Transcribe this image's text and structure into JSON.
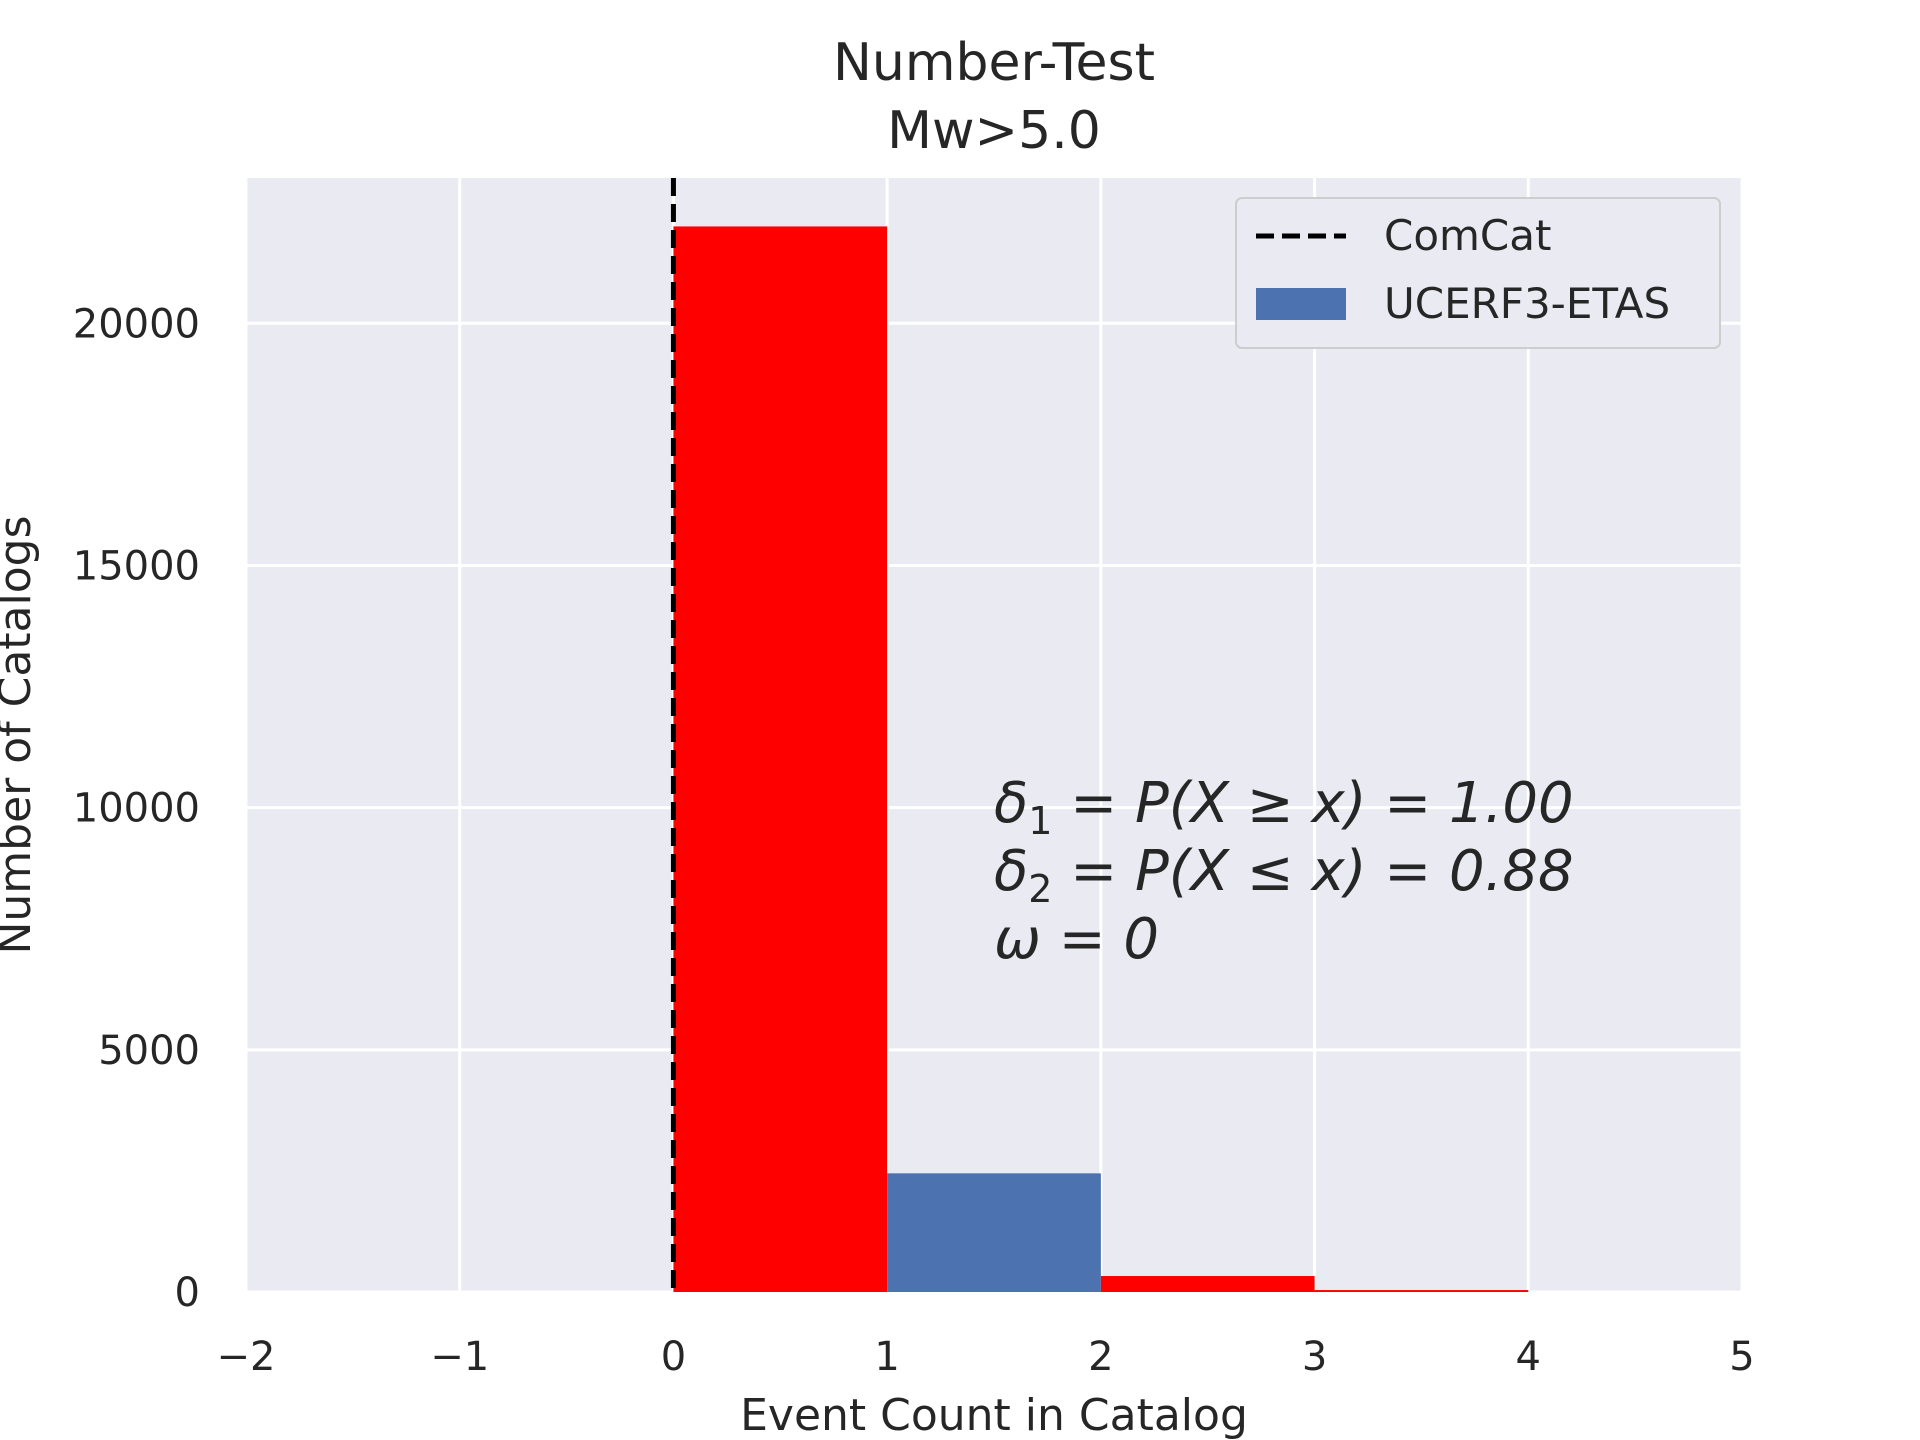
{
  "chart_data": {
    "type": "bar",
    "title": "Number-Test",
    "subtitle": "Mw>5.0",
    "xlabel": "Event Count in Catalog",
    "ylabel": "Number of Catalogs",
    "xlim": [
      -2,
      5
    ],
    "ylim": [
      0,
      23000
    ],
    "xticks": [
      "−2",
      "−1",
      "0",
      "1",
      "2",
      "3",
      "4",
      "5"
    ],
    "xtick_values": [
      -2,
      -1,
      0,
      1,
      2,
      3,
      4,
      5
    ],
    "yticks": [
      "0",
      "5000",
      "10000",
      "15000",
      "20000"
    ],
    "ytick_values": [
      0,
      5000,
      10000,
      15000,
      20000
    ],
    "grid": true,
    "legend_position": "upper right",
    "bins": [
      {
        "x0": 0,
        "x1": 1,
        "value": 22000,
        "color": "#ff0000"
      },
      {
        "x0": 1,
        "x1": 2,
        "value": 2450,
        "color": "#4c72b0"
      },
      {
        "x0": 2,
        "x1": 3,
        "value": 330,
        "color": "#ff0000"
      },
      {
        "x0": 3,
        "x1": 4,
        "value": 40,
        "color": "#ff0000"
      }
    ],
    "series": [
      {
        "name": "ComCat",
        "kind": "vline",
        "x": 0,
        "style": "dashed",
        "color": "#000000"
      },
      {
        "name": "UCERF3-ETAS",
        "kind": "hist",
        "color": "#4c72b0"
      }
    ],
    "annotations": [
      {
        "id": "delta1",
        "sym": "δ",
        "sub": "1",
        "text": " = P(X ≥ x) = 1.00"
      },
      {
        "id": "delta2",
        "sym": "δ",
        "sub": "2",
        "text": " = P(X ≤ x) = 0.88"
      },
      {
        "id": "omega",
        "sym": "ω",
        "sub": "",
        "text": " = 0"
      }
    ],
    "colors": {
      "background": "#eaeaf2",
      "grid": "#ffffff",
      "text": "#262626"
    }
  }
}
